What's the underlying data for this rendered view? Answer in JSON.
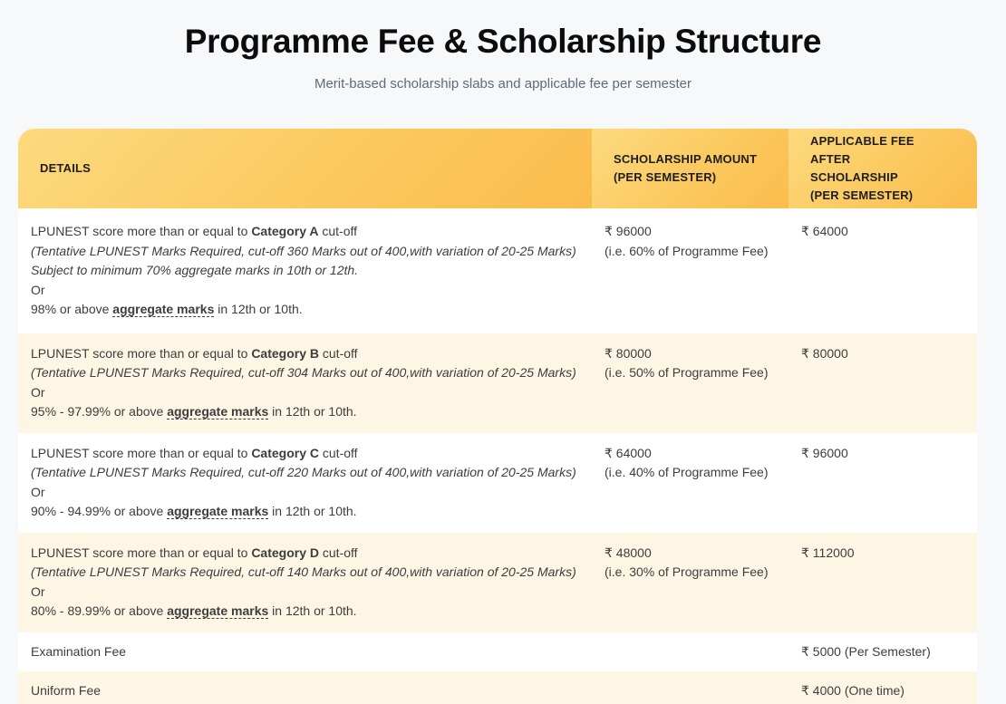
{
  "page": {
    "title": "Programme Fee & Scholarship Structure",
    "subtitle": "Merit-based scholarship slabs and applicable fee per semester"
  },
  "colors": {
    "header_gradient_start": "#fdda7e",
    "header_gradient_end": "#fbbc4e",
    "alt_row_bg": "#fdf6e5",
    "page_bg": "#f7f8fa",
    "body_text": "#3d3d3d",
    "header_text": "#1e1e1e",
    "subtitle_text": "#5d6b7a"
  },
  "table": {
    "headers": {
      "details": "DETAILS",
      "scholarship": "SCHOLARSHIP AMOUNT\n(PER SEMESTER)",
      "applicable": "APPLICABLE FEE AFTER\nSCHOLARSHIP\n(PER SEMESTER)"
    },
    "categories": [
      {
        "line1_prefix": "LPUNEST score more than or equal to ",
        "line1_bold": "Category A",
        "line1_suffix": " cut-off",
        "line2": "(Tentative LPUNEST Marks Required, cut-off 360 Marks out of 400,with variation of 20-25 Marks)",
        "line3": "Subject to minimum 70% aggregate marks in 10th or 12th.",
        "or_label": "Or",
        "line4_prefix": "98% or above ",
        "line4_underlined": "aggregate marks",
        "line4_suffix": " in 12th or 10th.",
        "scholarship_amount": "₹ 96000",
        "scholarship_note": "(i.e. 60% of Programme Fee)",
        "applicable_fee": "₹ 64000"
      },
      {
        "line1_prefix": "LPUNEST score more than or equal to ",
        "line1_bold": "Category B",
        "line1_suffix": " cut-off",
        "line2": "(Tentative LPUNEST Marks Required, cut-off 304 Marks out of 400,with variation of 20-25 Marks)",
        "or_label": "Or",
        "line4_prefix": "95% - 97.99% or above ",
        "line4_underlined": "aggregate marks",
        "line4_suffix": " in 12th or 10th.",
        "scholarship_amount": "₹ 80000",
        "scholarship_note": "(i.e. 50% of Programme Fee)",
        "applicable_fee": "₹ 80000"
      },
      {
        "line1_prefix": "LPUNEST score more than or equal to ",
        "line1_bold": "Category C",
        "line1_suffix": " cut-off",
        "line2": "(Tentative LPUNEST Marks Required, cut-off 220 Marks out of 400,with variation of 20-25 Marks)",
        "or_label": "Or",
        "line4_prefix": "90% - 94.99% or above ",
        "line4_underlined": "aggregate marks",
        "line4_suffix": " in 12th or 10th.",
        "scholarship_amount": "₹ 64000",
        "scholarship_note": "(i.e. 40% of Programme Fee)",
        "applicable_fee": "₹ 96000"
      },
      {
        "line1_prefix": "LPUNEST score more than or equal to ",
        "line1_bold": "Category D",
        "line1_suffix": " cut-off",
        "line2": "(Tentative LPUNEST Marks Required, cut-off 140 Marks out of 400,with variation of 20-25 Marks)",
        "or_label": "Or",
        "line4_prefix": "80% - 89.99% or above ",
        "line4_underlined": "aggregate marks",
        "line4_suffix": " in 12th or 10th.",
        "scholarship_amount": "₹ 48000",
        "scholarship_note": "(i.e. 30% of Programme Fee)",
        "applicable_fee": "₹ 112000"
      }
    ],
    "fees": [
      {
        "label": "Examination Fee",
        "amount": "₹ 5000 (Per Semester)"
      },
      {
        "label": "Uniform Fee",
        "amount": "₹ 4000 (One time)"
      }
    ]
  }
}
